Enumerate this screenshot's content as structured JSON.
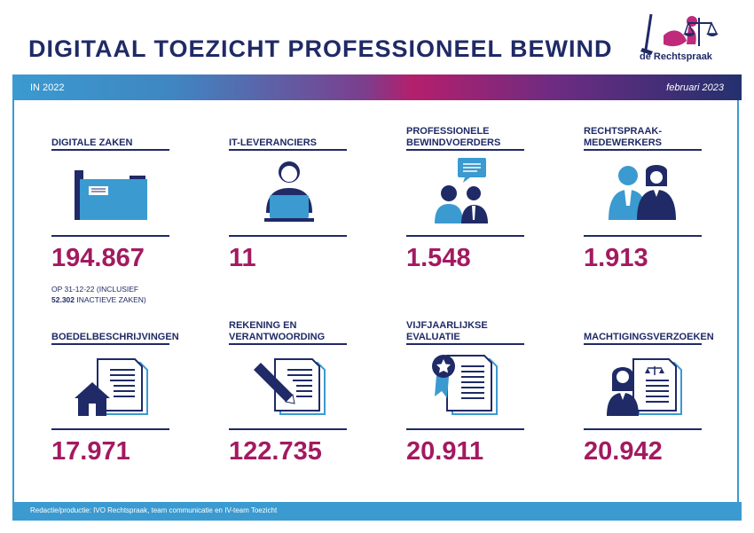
{
  "header": {
    "title": "DIGITAAL TOEZICHT PROFESSIONEEL BEWIND",
    "logo_text": "de Rechtspraak"
  },
  "bar": {
    "left": "IN 2022",
    "right": "februari 2023"
  },
  "cards": [
    {
      "label": "DIGITALE ZAKEN",
      "value": "194.867",
      "icon": "folder-icon",
      "note_line1": "OP 31-12-22 (INCLUSIEF",
      "note_line2_bold": "52.302",
      "note_line2_rest": " INACTIEVE ZAKEN)"
    },
    {
      "label": "IT-LEVERANCIERS",
      "value": "11",
      "icon": "person-laptop-icon"
    },
    {
      "label_line1": "PROFESSIONELE",
      "label_line2": "BEWINDVOERDERS",
      "value": "1.548",
      "icon": "people-chat-icon"
    },
    {
      "label_line1": "RECHTSPRAAK-",
      "label_line2": "MEDEWERKERS",
      "value": "1.913",
      "icon": "two-people-icon"
    },
    {
      "label": "BOEDELBESCHRIJVINGEN",
      "value": "17.971",
      "icon": "house-document-icon"
    },
    {
      "label_line1": "REKENING EN",
      "label_line2": "VERANTWOORDING",
      "value": "122.735",
      "icon": "pencil-document-icon"
    },
    {
      "label_line1": "VIJFJAARLIJKSE",
      "label_line2": "EVALUATIE",
      "value": "20.911",
      "icon": "award-document-icon"
    },
    {
      "label": "MACHTIGINGSVERZOEKEN",
      "value": "20.942",
      "icon": "woman-document-icon"
    }
  ],
  "footer": {
    "text": "Redactie/productie: IVO Rechtspraak, team communicatie en IV-team Toezicht"
  },
  "colors": {
    "navy": "#1f2a66",
    "blue": "#3b9ad0",
    "magenta": "#a31a60"
  }
}
